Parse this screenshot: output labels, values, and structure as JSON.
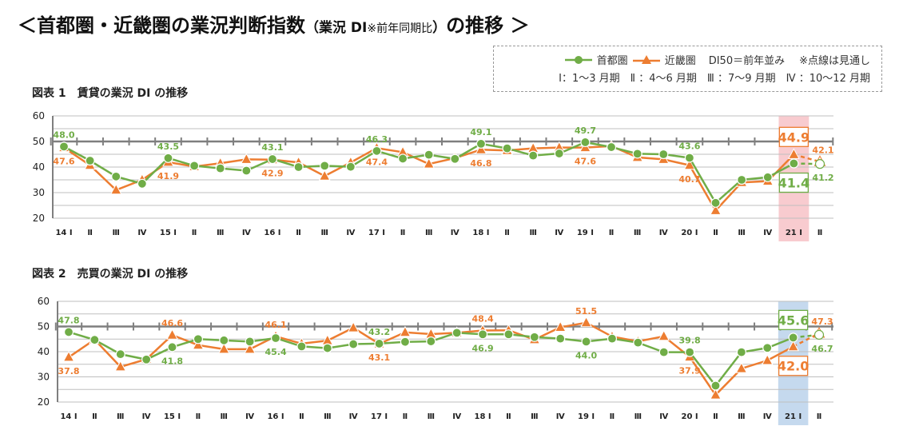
{
  "title": {
    "main_a": "＜首都圏・近畿圏の業況判断指数",
    "paren": "（業況 DI",
    "note": "※前年同期比",
    "paren_close": "）",
    "main_b": "の推移 ＞"
  },
  "legend": {
    "series_a": "首都圏",
    "series_b": "近畿圏",
    "baseline_note": "DI50＝前年並み",
    "forecast_note": "※点線は見通し",
    "quarters": "Ⅰ：1〜3 月期　Ⅱ ：4〜6 月期　Ⅲ ：7〜9 月期　Ⅳ ：10〜12 月期"
  },
  "colors": {
    "tokyo": "#70AD47",
    "kinki": "#ED7D31",
    "highlight1": "#F8CBCF",
    "highlight2": "#C5D9EE",
    "baseline": "#7F7F7F",
    "grid": "#BFBFBF"
  },
  "chart_data": [
    {
      "type": "line",
      "title": "図表 1　賃貸の業況 DI の推移",
      "ylim": [
        20,
        60
      ],
      "yticks": [
        "20",
        "30",
        "40",
        "50",
        "60"
      ],
      "baseline": 50,
      "categories": [
        "14 Ⅰ",
        "Ⅱ",
        "Ⅲ",
        "Ⅳ",
        "15 Ⅰ",
        "Ⅱ",
        "Ⅲ",
        "Ⅳ",
        "16 Ⅰ",
        "Ⅱ",
        "Ⅲ",
        "Ⅳ",
        "17 Ⅰ",
        "Ⅱ",
        "Ⅲ",
        "Ⅳ",
        "18 Ⅰ",
        "Ⅱ",
        "Ⅲ",
        "Ⅳ",
        "19 Ⅰ",
        "Ⅱ",
        "Ⅲ",
        "Ⅳ",
        "20 Ⅰ",
        "Ⅱ",
        "Ⅲ",
        "Ⅳ",
        "21 Ⅰ",
        "Ⅱ"
      ],
      "highlight_category": "21 Ⅰ",
      "forecast_from_index": 28,
      "series": [
        {
          "name": "首都圏",
          "marker": "circle",
          "values": [
            48.0,
            42.5,
            36.3,
            33.5,
            43.5,
            40.5,
            39.5,
            38.6,
            43.1,
            40.0,
            40.5,
            40.1,
            46.3,
            43.3,
            44.8,
            43.2,
            49.1,
            47.3,
            44.5,
            45.3,
            49.7,
            47.8,
            45.2,
            45.0,
            43.6,
            26.0,
            35.0,
            36.0,
            41.4,
            41.2
          ]
        },
        {
          "name": "近畿圏",
          "marker": "triangle",
          "values": [
            47.6,
            40.7,
            31.0,
            35.0,
            41.9,
            40.2,
            41.5,
            43.0,
            42.9,
            41.8,
            36.5,
            41.8,
            47.4,
            45.8,
            41.2,
            43.5,
            46.8,
            46.5,
            47.3,
            47.6,
            47.6,
            48.2,
            43.8,
            43.0,
            40.7,
            23.0,
            34.0,
            34.5,
            44.9,
            42.1
          ]
        }
      ],
      "data_labels": [
        {
          "series": 0,
          "index": 0,
          "text": "48.0",
          "pos": "above"
        },
        {
          "series": 1,
          "index": 0,
          "text": "47.6",
          "pos": "below"
        },
        {
          "series": 0,
          "index": 4,
          "text": "43.5",
          "pos": "above"
        },
        {
          "series": 1,
          "index": 4,
          "text": "41.9",
          "pos": "below"
        },
        {
          "series": 0,
          "index": 8,
          "text": "43.1",
          "pos": "above"
        },
        {
          "series": 1,
          "index": 8,
          "text": "42.9",
          "pos": "below"
        },
        {
          "series": 0,
          "index": 12,
          "text": "46.3",
          "pos": "above"
        },
        {
          "series": 1,
          "index": 12,
          "text": "47.4",
          "pos": "below"
        },
        {
          "series": 0,
          "index": 16,
          "text": "49.1",
          "pos": "above"
        },
        {
          "series": 1,
          "index": 16,
          "text": "46.8",
          "pos": "below"
        },
        {
          "series": 0,
          "index": 20,
          "text": "49.7",
          "pos": "above"
        },
        {
          "series": 1,
          "index": 20,
          "text": "47.6",
          "pos": "below"
        },
        {
          "series": 0,
          "index": 24,
          "text": "43.6",
          "pos": "above"
        },
        {
          "series": 1,
          "index": 24,
          "text": "40.7",
          "pos": "below"
        },
        {
          "series": 1,
          "index": 28,
          "text": "44.9",
          "pos": "above",
          "boxed": true
        },
        {
          "series": 0,
          "index": 28,
          "text": "41.4",
          "pos": "below",
          "boxed": true
        },
        {
          "series": 1,
          "index": 29,
          "text": "42.1",
          "pos": "above"
        },
        {
          "series": 0,
          "index": 29,
          "text": "41.2",
          "pos": "below"
        }
      ]
    },
    {
      "type": "line",
      "title": "図表 2　売買の業況 DI の推移",
      "ylim": [
        20,
        60
      ],
      "yticks": [
        "20",
        "30",
        "40",
        "50",
        "60"
      ],
      "baseline": 50,
      "categories": [
        "14 Ⅰ",
        "Ⅱ",
        "Ⅲ",
        "Ⅳ",
        "15 Ⅰ",
        "Ⅱ",
        "Ⅲ",
        "Ⅳ",
        "16 Ⅰ",
        "Ⅱ",
        "Ⅲ",
        "Ⅳ",
        "17 Ⅰ",
        "Ⅱ",
        "Ⅲ",
        "Ⅳ",
        "18 Ⅰ",
        "Ⅱ",
        "Ⅲ",
        "Ⅳ",
        "19 Ⅰ",
        "Ⅱ",
        "Ⅲ",
        "Ⅳ",
        "20 Ⅰ",
        "Ⅱ",
        "Ⅲ",
        "Ⅳ",
        "21 Ⅰ",
        "Ⅱ"
      ],
      "highlight_category": "21 Ⅰ",
      "forecast_from_index": 28,
      "series": [
        {
          "name": "首都圏",
          "marker": "circle",
          "values": [
            47.8,
            44.7,
            39.0,
            36.9,
            41.8,
            45.0,
            44.5,
            44.0,
            45.4,
            42.1,
            41.4,
            43.0,
            43.2,
            43.9,
            44.1,
            47.5,
            46.9,
            46.9,
            45.8,
            45.2,
            44.0,
            45.2,
            43.6,
            39.8,
            39.8,
            26.5,
            39.8,
            41.5,
            45.6,
            46.7
          ]
        },
        {
          "name": "近畿圏",
          "marker": "triangle",
          "values": [
            37.8,
            44.8,
            34.0,
            37.0,
            46.6,
            42.6,
            41.0,
            41.0,
            46.1,
            43.2,
            44.4,
            49.5,
            43.1,
            47.7,
            47.0,
            47.5,
            48.4,
            48.5,
            44.8,
            49.7,
            51.5,
            46.0,
            44.1,
            46.1,
            37.9,
            22.8,
            33.3,
            36.5,
            42.0,
            47.3
          ]
        }
      ],
      "data_labels": [
        {
          "series": 0,
          "index": 0,
          "text": "47.8",
          "pos": "above"
        },
        {
          "series": 1,
          "index": 0,
          "text": "37.8",
          "pos": "below"
        },
        {
          "series": 1,
          "index": 4,
          "text": "46.6",
          "pos": "above"
        },
        {
          "series": 0,
          "index": 4,
          "text": "41.8",
          "pos": "below"
        },
        {
          "series": 1,
          "index": 8,
          "text": "46.1",
          "pos": "above"
        },
        {
          "series": 0,
          "index": 8,
          "text": "45.4",
          "pos": "below"
        },
        {
          "series": 0,
          "index": 12,
          "text": "43.2",
          "pos": "above"
        },
        {
          "series": 1,
          "index": 12,
          "text": "43.1",
          "pos": "below"
        },
        {
          "series": 1,
          "index": 16,
          "text": "48.4",
          "pos": "above"
        },
        {
          "series": 0,
          "index": 16,
          "text": "46.9",
          "pos": "below"
        },
        {
          "series": 1,
          "index": 20,
          "text": "51.5",
          "pos": "above"
        },
        {
          "series": 0,
          "index": 20,
          "text": "44.0",
          "pos": "below"
        },
        {
          "series": 0,
          "index": 24,
          "text": "39.8",
          "pos": "above"
        },
        {
          "series": 1,
          "index": 24,
          "text": "37.9",
          "pos": "below"
        },
        {
          "series": 0,
          "index": 28,
          "text": "45.6",
          "pos": "above",
          "boxed": true
        },
        {
          "series": 1,
          "index": 28,
          "text": "42.0",
          "pos": "below",
          "boxed": true
        },
        {
          "series": 1,
          "index": 29,
          "text": "47.3",
          "pos": "above"
        },
        {
          "series": 0,
          "index": 29,
          "text": "46.7",
          "pos": "below"
        }
      ]
    }
  ]
}
